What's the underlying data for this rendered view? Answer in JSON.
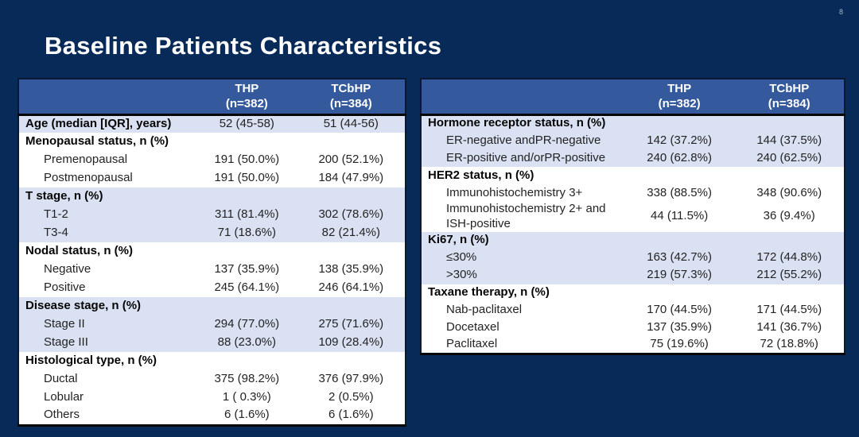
{
  "slide": {
    "page_number": "8",
    "title": "Baseline Patients Characteristics"
  },
  "colors": {
    "slide_background": "#082A59",
    "table_header_bg": "#345A9D",
    "table_header_text": "#FFFFFF",
    "row_shaded_bg": "#D9E1F2",
    "row_plain_bg": "#FFFFFF",
    "body_text": "#232323",
    "border_dark": "#060606"
  },
  "tables": [
    {
      "name": "baseline-characteristics-left",
      "header": {
        "col_label": "",
        "col_thp": "THP\n(n=382)",
        "col_tcbhp": "TCbHP\n(n=384)"
      },
      "rows": [
        {
          "label": "Age (median [IQR], years)",
          "thp": "52 (45-58)",
          "tcbhp": "51 (44-56)",
          "bold": true,
          "indent": false,
          "shade": true,
          "tall": false
        },
        {
          "label": "Menopausal status, n (%)",
          "thp": "",
          "tcbhp": "",
          "bold": true,
          "indent": false,
          "shade": false,
          "tall": false
        },
        {
          "label": "Premenopausal",
          "thp": "191 (50.0%)",
          "tcbhp": "200 (52.1%)",
          "bold": false,
          "indent": true,
          "shade": false,
          "tall": false
        },
        {
          "label": "Postmenopausal",
          "thp": "191 (50.0%)",
          "tcbhp": "184 (47.9%)",
          "bold": false,
          "indent": true,
          "shade": false,
          "tall": false
        },
        {
          "label": "T stage, n (%)",
          "thp": "",
          "tcbhp": "",
          "bold": true,
          "indent": false,
          "shade": true,
          "tall": false
        },
        {
          "label": "T1-2",
          "thp": "311 (81.4%)",
          "tcbhp": "302 (78.6%)",
          "bold": false,
          "indent": true,
          "shade": true,
          "tall": false
        },
        {
          "label": "T3-4",
          "thp": "71 (18.6%)",
          "tcbhp": "82 (21.4%)",
          "bold": false,
          "indent": true,
          "shade": true,
          "tall": false
        },
        {
          "label": "Nodal status, n (%)",
          "thp": "",
          "tcbhp": "",
          "bold": true,
          "indent": false,
          "shade": false,
          "tall": false
        },
        {
          "label": "Negative",
          "thp": "137 (35.9%)",
          "tcbhp": "138 (35.9%)",
          "bold": false,
          "indent": true,
          "shade": false,
          "tall": false
        },
        {
          "label": "Positive",
          "thp": "245 (64.1%)",
          "tcbhp": "246 (64.1%)",
          "bold": false,
          "indent": true,
          "shade": false,
          "tall": false
        },
        {
          "label": "Disease stage, n (%)",
          "thp": "",
          "tcbhp": "",
          "bold": true,
          "indent": false,
          "shade": true,
          "tall": false
        },
        {
          "label": "Stage II",
          "thp": "294 (77.0%)",
          "tcbhp": "275 (71.6%)",
          "bold": false,
          "indent": true,
          "shade": true,
          "tall": false
        },
        {
          "label": "Stage III",
          "thp": "88 (23.0%)",
          "tcbhp": "109 (28.4%)",
          "bold": false,
          "indent": true,
          "shade": true,
          "tall": false
        },
        {
          "label": "Histological type, n (%)",
          "thp": "",
          "tcbhp": "",
          "bold": true,
          "indent": false,
          "shade": false,
          "tall": false
        },
        {
          "label": "Ductal",
          "thp": "375 (98.2%)",
          "tcbhp": "376 (97.9%)",
          "bold": false,
          "indent": true,
          "shade": false,
          "tall": false
        },
        {
          "label": "Lobular",
          "thp": "1 ( 0.3%)",
          "tcbhp": "2 (0.5%)",
          "bold": false,
          "indent": true,
          "shade": false,
          "tall": false
        },
        {
          "label": "Others",
          "thp": "6 (1.6%)",
          "tcbhp": "6 (1.6%)",
          "bold": false,
          "indent": true,
          "shade": false,
          "tall": false
        }
      ]
    },
    {
      "name": "baseline-characteristics-right",
      "header": {
        "col_label": "",
        "col_thp": "THP\n(n=382)",
        "col_tcbhp": "TCbHP\n(n=384)"
      },
      "rows": [
        {
          "label": "Hormone receptor status, n (%)",
          "thp": "",
          "tcbhp": "",
          "bold": true,
          "indent": false,
          "shade": true,
          "tall": false
        },
        {
          "label": "ER-negative andPR-negative",
          "thp": "142 (37.2%)",
          "tcbhp": "144 (37.5%)",
          "bold": false,
          "indent": true,
          "shade": true,
          "tall": false
        },
        {
          "label": "ER-positive and/orPR-positive",
          "thp": "240 (62.8%)",
          "tcbhp": "240 (62.5%)",
          "bold": false,
          "indent": true,
          "shade": true,
          "tall": false
        },
        {
          "label": "HER2 status, n (%)",
          "thp": "",
          "tcbhp": "",
          "bold": true,
          "indent": false,
          "shade": false,
          "tall": false
        },
        {
          "label": "Immunohistochemistry 3+",
          "thp": "338 (88.5%)",
          "tcbhp": "348 (90.6%)",
          "bold": false,
          "indent": true,
          "shade": false,
          "tall": false
        },
        {
          "label": "Immunohistochemistry 2+ and\nISH-positive",
          "thp": "44 (11.5%)",
          "tcbhp": "36 (9.4%)",
          "bold": false,
          "indent": true,
          "shade": false,
          "tall": true
        },
        {
          "label": "Ki67, n (%)",
          "thp": "",
          "tcbhp": "",
          "bold": true,
          "indent": false,
          "shade": true,
          "tall": false
        },
        {
          "label": "≤30%",
          "thp": "163 (42.7%)",
          "tcbhp": "172 (44.8%)",
          "bold": false,
          "indent": true,
          "shade": true,
          "tall": false
        },
        {
          "label": ">30%",
          "thp": "219 (57.3%)",
          "tcbhp": "212 (55.2%)",
          "bold": false,
          "indent": true,
          "shade": true,
          "tall": false
        },
        {
          "label": "Taxane therapy, n (%)",
          "thp": "",
          "tcbhp": "",
          "bold": true,
          "indent": false,
          "shade": false,
          "tall": false
        },
        {
          "label": "Nab-paclitaxel",
          "thp": "170 (44.5%)",
          "tcbhp": "171 (44.5%)",
          "bold": false,
          "indent": true,
          "shade": false,
          "tall": false
        },
        {
          "label": "Docetaxel",
          "thp": "137 (35.9%)",
          "tcbhp": "141 (36.7%)",
          "bold": false,
          "indent": true,
          "shade": false,
          "tall": false
        },
        {
          "label": "Paclitaxel",
          "thp": "75 (19.6%)",
          "tcbhp": "72 (18.8%)",
          "bold": false,
          "indent": true,
          "shade": false,
          "tall": false
        }
      ]
    }
  ]
}
